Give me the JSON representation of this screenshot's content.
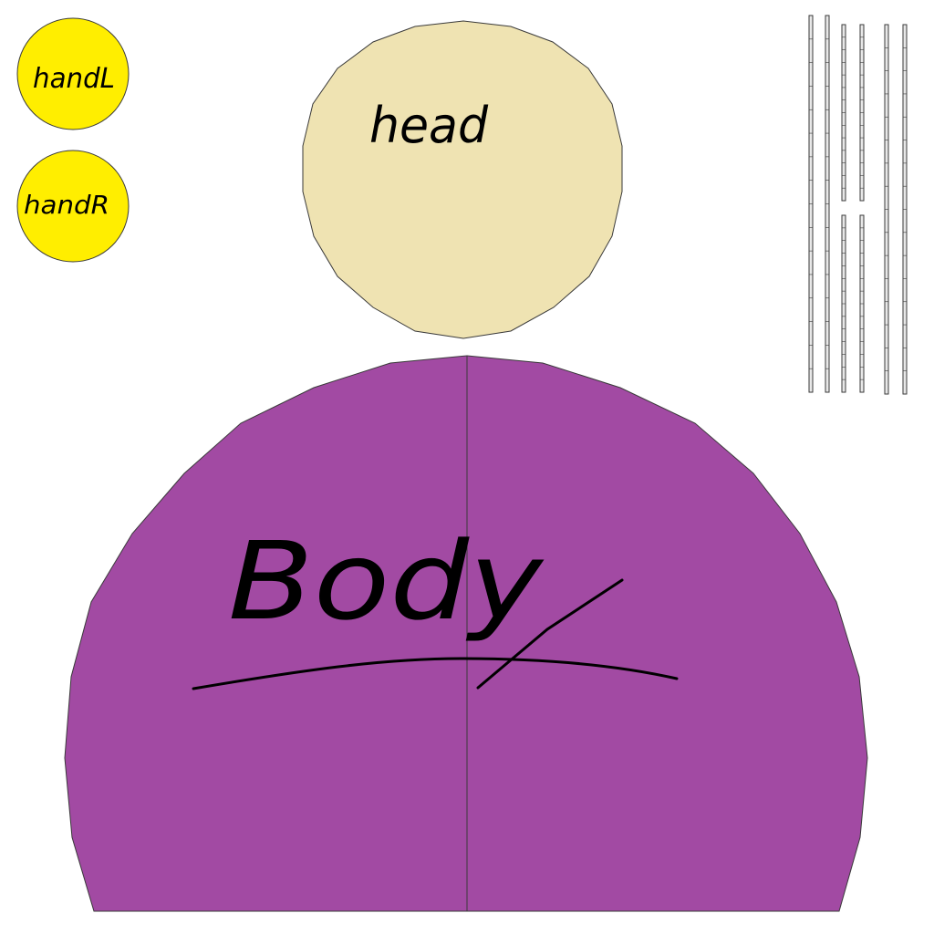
{
  "texture_sheet": {
    "hand_left": {
      "label": "handL",
      "fill": "#ffee00"
    },
    "hand_right": {
      "label": "handR",
      "fill": "#ffee00"
    },
    "head": {
      "label": "head",
      "fill": "#efe3b2"
    },
    "body": {
      "label": "Body",
      "fill": "#a24aa3"
    },
    "outline_color": "#3a3a3a",
    "ink_color": "#000000",
    "strip_fill": "#e8e8e8"
  }
}
